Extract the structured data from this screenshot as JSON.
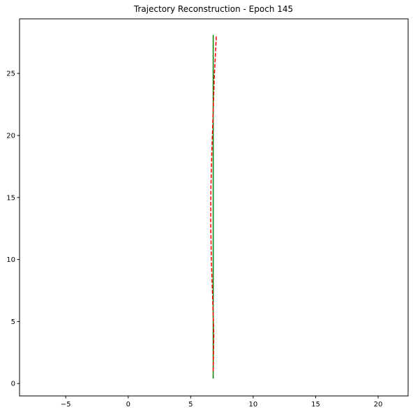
{
  "chart_data": {
    "type": "line",
    "title": "Trajectory Reconstruction - Epoch 145",
    "xlabel": "",
    "ylabel": "",
    "xlim": [
      -8.7,
      22.4
    ],
    "ylim": [
      -1.0,
      29.4
    ],
    "xticks": [
      -5,
      0,
      5,
      10,
      15,
      20
    ],
    "yticks": [
      0,
      5,
      10,
      15,
      20,
      25
    ],
    "grid": false,
    "series": [
      {
        "color": "#008000",
        "linestyle": "solid",
        "x": [
          6.8,
          6.8,
          6.8,
          6.8
        ],
        "y": [
          0.4,
          10.0,
          20.0,
          28.1
        ]
      },
      {
        "color": "#ff0000",
        "linestyle": "dashed",
        "x": [
          6.8,
          6.85,
          6.75,
          6.65,
          6.6,
          6.62,
          6.7,
          6.8,
          6.9,
          7.0,
          7.05
        ],
        "y": [
          1.0,
          4.0,
          7.0,
          10.0,
          13.0,
          16.0,
          19.0,
          22.0,
          25.0,
          27.0,
          28.1
        ]
      }
    ]
  }
}
